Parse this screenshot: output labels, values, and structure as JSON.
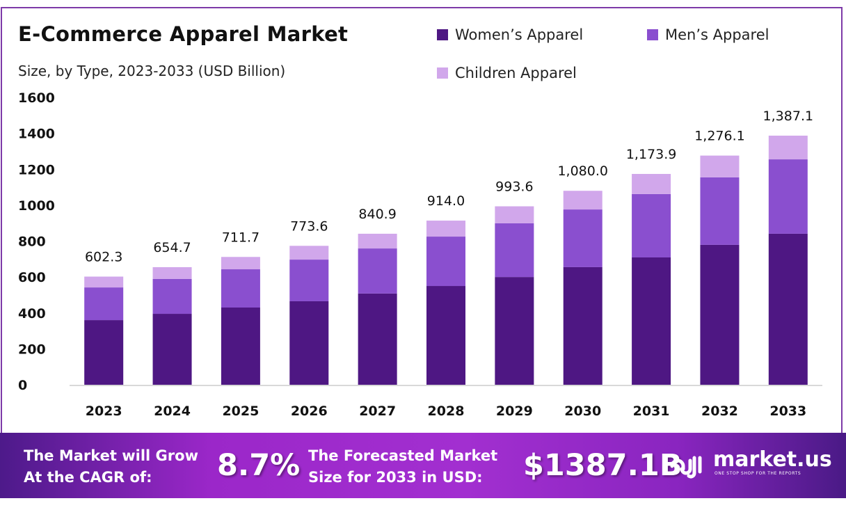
{
  "header": {
    "title": "E-Commerce Apparel Market",
    "subtitle": "Size, by Type, 2023-2033 (USD Billion)"
  },
  "colors": {
    "women": "#4e1783",
    "men": "#8a4fcf",
    "children": "#d1a7eb",
    "frame": "#7d3aa8"
  },
  "chart_data": {
    "type": "bar",
    "stacked": true,
    "title": "E-Commerce Apparel Market",
    "subtitle": "Size, by Type, 2023-2033 (USD Billion)",
    "xlabel": "",
    "ylabel": "",
    "ylim": [
      0,
      1600
    ],
    "yticks": [
      "0",
      "200",
      "400",
      "600",
      "800",
      "1000",
      "1200",
      "1400",
      "1600"
    ],
    "grid": false,
    "legend_position": "top-right",
    "categories": [
      "2023",
      "2024",
      "2025",
      "2026",
      "2027",
      "2028",
      "2029",
      "2030",
      "2031",
      "2032",
      "2033"
    ],
    "series": [
      {
        "name": "Women’s Apparel",
        "values": [
          360,
          395,
          430,
          465,
          508,
          550,
          600,
          655,
          709,
          779,
          841
        ]
      },
      {
        "name": "Men’s Apparel",
        "values": [
          182,
          194,
          213,
          232,
          251,
          275,
          299,
          321,
          353,
          376,
          414
        ]
      },
      {
        "name": "Children Apparel",
        "values": [
          60.3,
          65.7,
          68.7,
          76.6,
          81.9,
          89.0,
          94.6,
          104.0,
          111.9,
          121.1,
          132.1
        ]
      }
    ],
    "totals": [
      "602.3",
      "654.7",
      "711.7",
      "773.6",
      "840.9",
      "914.0",
      "993.6",
      "1,080.0",
      "1,173.9",
      "1,276.1",
      "1,387.1"
    ]
  },
  "banner": {
    "cagr_label_line1": "The Market will Grow",
    "cagr_label_line2": "At the CAGR of:",
    "cagr_value": "8.7%",
    "forecast_label_line1": "The Forecasted Market",
    "forecast_label_line2": "Size for 2033 in USD:",
    "forecast_value": "$1387.1B",
    "brand": "market.us",
    "brand_tagline": "ONE STOP SHOP FOR THE REPORTS"
  }
}
